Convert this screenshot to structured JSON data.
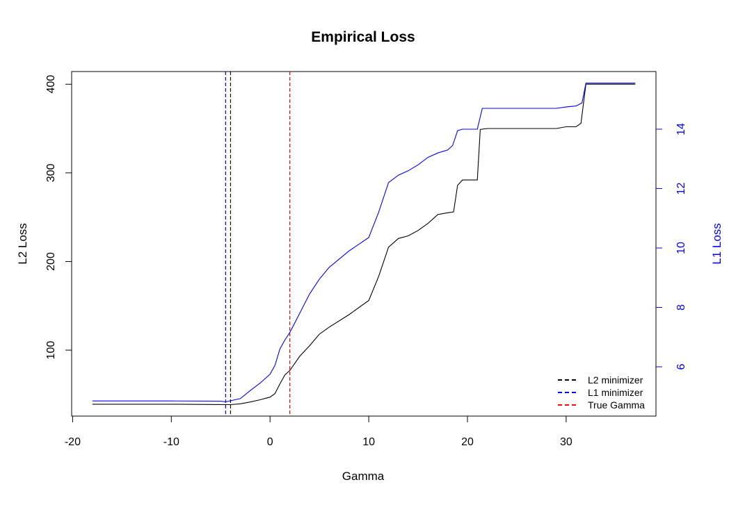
{
  "colors": {
    "l2": "#000000",
    "l1": "#0000ff",
    "true_gamma": "#ff0000",
    "right_axis": "#0000ff"
  },
  "chart_data": {
    "type": "line",
    "title": "Empirical Loss",
    "xlabel": "Gamma",
    "ylabel_left": "L2 Loss",
    "ylabel_right": "L1 Loss",
    "x_ticks": [
      -20,
      -10,
      0,
      10,
      20,
      30
    ],
    "x_tick_labels": [
      "-20",
      "-10",
      "0",
      "10",
      "20",
      "30"
    ],
    "y_left_ticks": [
      100,
      200,
      300,
      400
    ],
    "y_left_tick_labels": [
      "100",
      "200",
      "300",
      "400"
    ],
    "y_right_ticks": [
      6,
      8,
      10,
      12,
      14
    ],
    "y_right_tick_labels": [
      "6",
      "8",
      "10",
      "12",
      "14"
    ],
    "xlim": [
      -20.1,
      39.1
    ],
    "ylim_left": [
      25.6,
      414.3
    ],
    "ylim_right": [
      4.34,
      15.94
    ],
    "grid": false,
    "legend_position": "bottom-right",
    "legend": [
      {
        "label": "L2 minimizer",
        "color": "#000000",
        "style": "dashed"
      },
      {
        "label": "L1 minimizer",
        "color": "#0000ff",
        "style": "dashed"
      },
      {
        "label": "True Gamma",
        "color": "#ff0000",
        "style": "dashed"
      }
    ],
    "vlines": [
      {
        "name": "L2 minimizer",
        "x": -4.0,
        "color": "#000000"
      },
      {
        "name": "L1 minimizer",
        "x": -4.5,
        "color": "#0000ff"
      },
      {
        "name": "True Gamma",
        "x": 2.0,
        "color": "#ff0000"
      }
    ],
    "series": [
      {
        "name": "L2 Loss",
        "axis": "left",
        "color": "#000000",
        "x": [
          -18,
          -10,
          -5,
          -4,
          -3,
          -2,
          -1,
          0,
          0.5,
          1,
          1.5,
          2,
          3,
          4,
          5,
          6,
          8,
          10,
          11,
          12,
          13,
          14,
          15,
          16,
          17,
          18,
          18.6,
          19,
          19.5,
          21,
          21.3,
          22,
          25,
          29,
          30,
          31,
          31.5,
          32,
          37
        ],
        "y": [
          39,
          39,
          38.6,
          38.5,
          39.5,
          41.5,
          44,
          47,
          51,
          62,
          72,
          77,
          93,
          105,
          118,
          126,
          140,
          156,
          183,
          216,
          226,
          229,
          235,
          243,
          253,
          255,
          256,
          286,
          292,
          292,
          349,
          350,
          350,
          350,
          352,
          352,
          356,
          400,
          400
        ]
      },
      {
        "name": "L1 Loss",
        "axis": "right",
        "color": "#0000ff",
        "x": [
          -18,
          -10,
          -5,
          -4.5,
          -3,
          -2,
          -1,
          0,
          0.5,
          1,
          1.5,
          2,
          3,
          4,
          5,
          6,
          8,
          10,
          11,
          12,
          13,
          14,
          15,
          16,
          17,
          18,
          18.5,
          19,
          19.5,
          21,
          21.5,
          22,
          25,
          29,
          30,
          31,
          31.6,
          32,
          37
        ],
        "y": [
          4.85,
          4.85,
          4.84,
          4.82,
          4.93,
          5.2,
          5.45,
          5.75,
          6.05,
          6.6,
          6.9,
          7.15,
          7.8,
          8.45,
          8.95,
          9.35,
          9.9,
          10.35,
          11.2,
          12.2,
          12.45,
          12.6,
          12.8,
          13.05,
          13.2,
          13.3,
          13.45,
          13.95,
          14.0,
          14.0,
          14.7,
          14.7,
          14.7,
          14.7,
          14.75,
          14.78,
          14.88,
          15.55,
          15.55
        ]
      }
    ]
  }
}
